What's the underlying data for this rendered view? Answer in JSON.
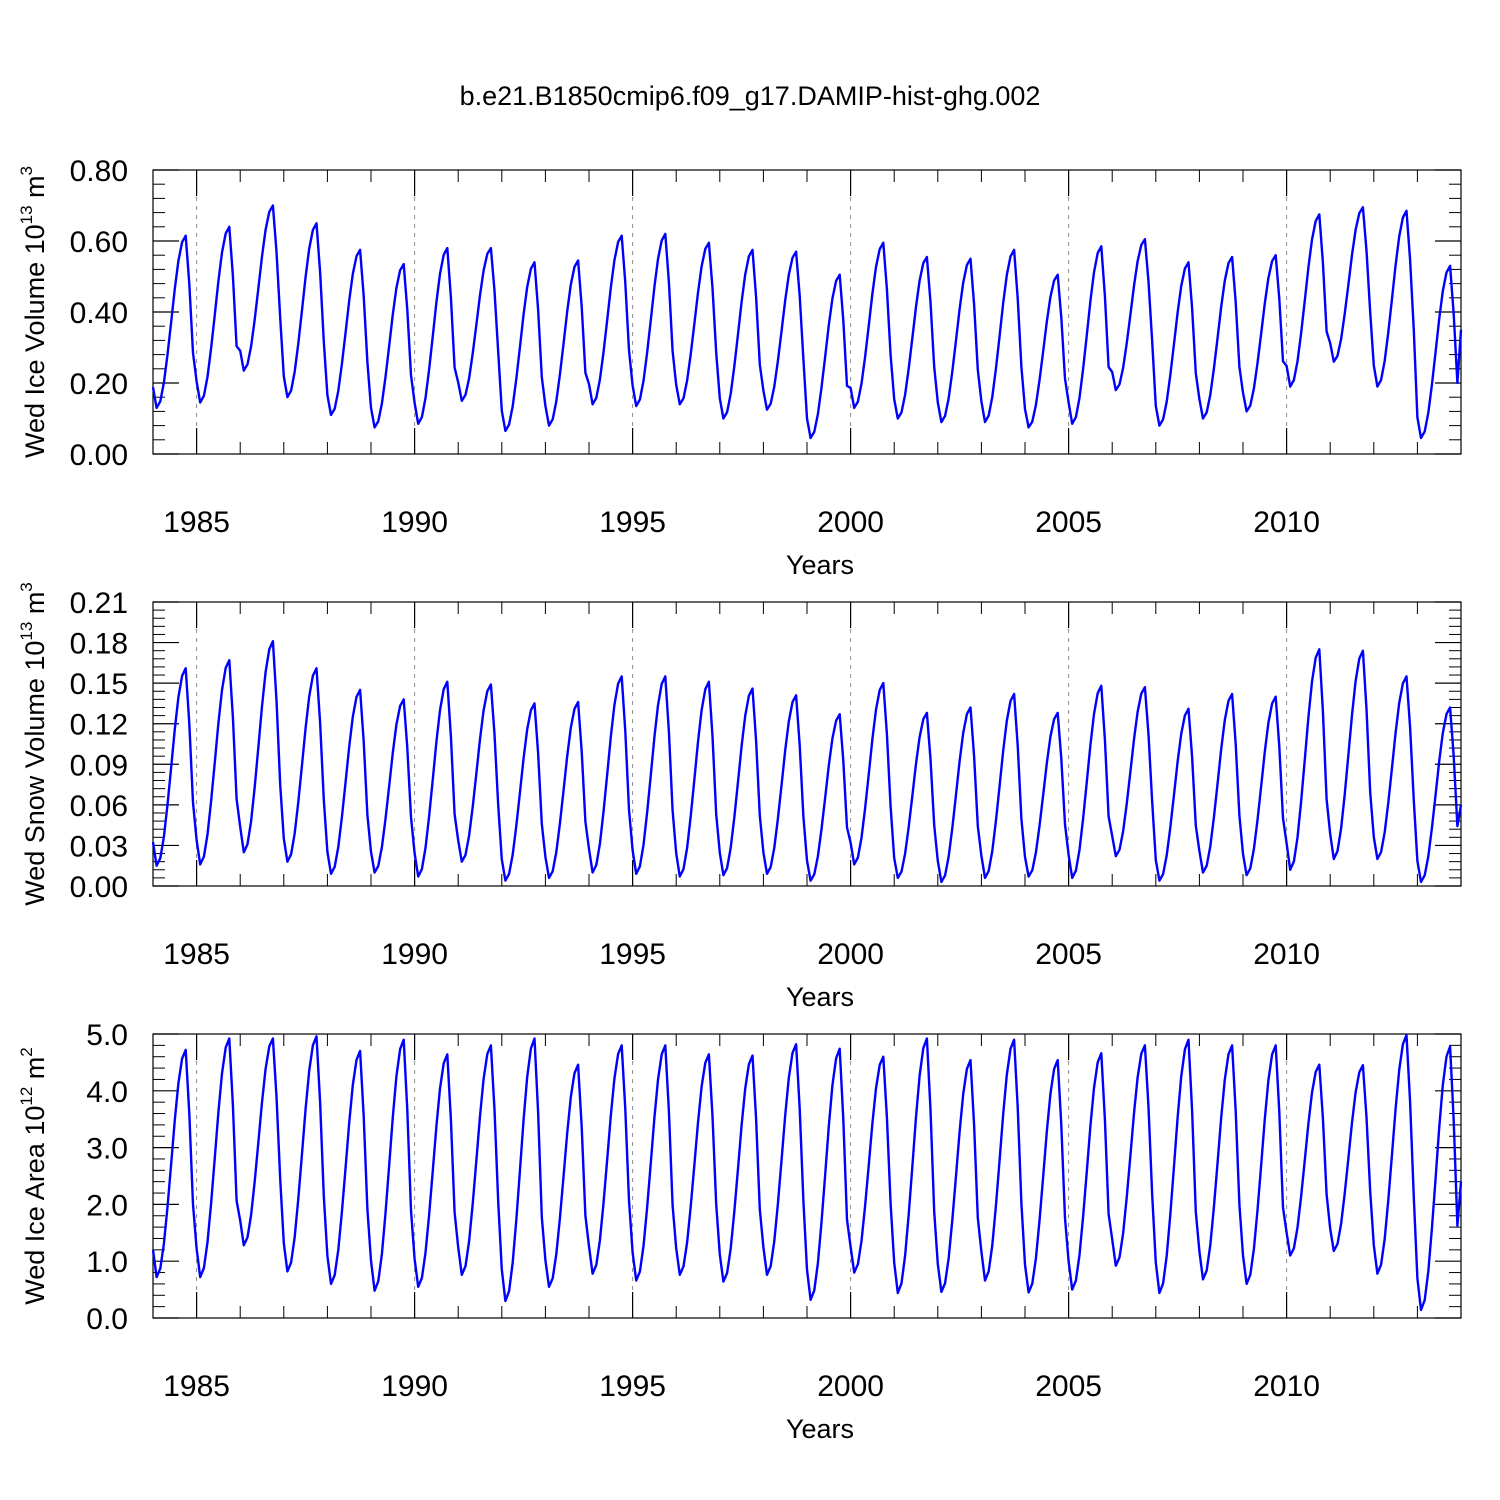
{
  "title": "b.e21.B1850cmip6.f09_g17.DAMIP-hist-ghg.002",
  "colors": {
    "line": "#0000ff",
    "axis": "#000000",
    "refline": "#8c8c8c"
  },
  "chart_data": [
    {
      "type": "line",
      "name": "ice-volume",
      "ylabel_main": "Wed Ice Volume 10",
      "ylabel_exp": "13",
      "ylabel_unit": " m",
      "ylabel_unit_exp": "3",
      "xlabel": "Years",
      "xlim": [
        1984.0,
        2014.0
      ],
      "ylim": [
        0.0,
        0.8
      ],
      "xticks": [
        "1985",
        "1990",
        "1995",
        "2000",
        "2005",
        "2010"
      ],
      "yticks": [
        "0.00",
        "0.20",
        "0.40",
        "0.60",
        "0.80"
      ],
      "ref_years": [
        1985,
        1990,
        1995,
        2000,
        2005,
        2010
      ],
      "series": [
        {
          "name": "Wed Ice Volume",
          "start_year": 1984.0,
          "step": 0.0833333,
          "annual_min": [
            0.13,
            0.145,
            0.235,
            0.16,
            0.11,
            0.075,
            0.085,
            0.15,
            0.065,
            0.08,
            0.14,
            0.135,
            0.14,
            0.1,
            0.125,
            0.045,
            0.13,
            0.1,
            0.09,
            0.09,
            0.075,
            0.085,
            0.18,
            0.08,
            0.1,
            0.12,
            0.19,
            0.26,
            0.19,
            0.045
          ],
          "annual_max": [
            0.615,
            0.64,
            0.7,
            0.65,
            0.575,
            0.535,
            0.58,
            0.58,
            0.54,
            0.545,
            0.615,
            0.62,
            0.595,
            0.575,
            0.57,
            0.505,
            0.595,
            0.555,
            0.55,
            0.575,
            0.505,
            0.585,
            0.605,
            0.54,
            0.555,
            0.56,
            0.675,
            0.695,
            0.685,
            0.53
          ],
          "end_value": 0.35
        }
      ]
    },
    {
      "type": "line",
      "name": "snow-volume",
      "ylabel_main": "Wed Snow Volume 10",
      "ylabel_exp": "13",
      "ylabel_unit": " m",
      "ylabel_unit_exp": "3",
      "xlabel": "Years",
      "xlim": [
        1984.0,
        2014.0
      ],
      "ylim": [
        0.0,
        0.21
      ],
      "xticks": [
        "1985",
        "1990",
        "1995",
        "2000",
        "2005",
        "2010"
      ],
      "yticks": [
        "0.00",
        "0.03",
        "0.06",
        "0.09",
        "0.12",
        "0.15",
        "0.18",
        "0.21"
      ],
      "ref_years": [
        1985,
        1990,
        1995,
        2000,
        2005,
        2010
      ],
      "series": [
        {
          "name": "Wed Snow Volume",
          "start_year": 1984.0,
          "step": 0.0833333,
          "annual_min": [
            0.015,
            0.016,
            0.025,
            0.018,
            0.009,
            0.01,
            0.007,
            0.018,
            0.004,
            0.006,
            0.01,
            0.009,
            0.007,
            0.008,
            0.009,
            0.004,
            0.016,
            0.006,
            0.003,
            0.006,
            0.007,
            0.006,
            0.022,
            0.004,
            0.01,
            0.008,
            0.012,
            0.02,
            0.02,
            0.003
          ],
          "annual_max": [
            0.161,
            0.167,
            0.181,
            0.161,
            0.145,
            0.138,
            0.151,
            0.149,
            0.135,
            0.136,
            0.155,
            0.155,
            0.151,
            0.146,
            0.141,
            0.127,
            0.15,
            0.128,
            0.132,
            0.142,
            0.128,
            0.148,
            0.147,
            0.131,
            0.142,
            0.14,
            0.175,
            0.174,
            0.155,
            0.132
          ],
          "end_value": 0.06
        }
      ]
    },
    {
      "type": "line",
      "name": "ice-area",
      "ylabel_main": "Wed Ice Area 10",
      "ylabel_exp": "12",
      "ylabel_unit": " m",
      "ylabel_unit_exp": "2",
      "xlabel": "Years",
      "xlim": [
        1984.0,
        2014.0
      ],
      "ylim": [
        0.0,
        5.0
      ],
      "xticks": [
        "1985",
        "1990",
        "1995",
        "2000",
        "2005",
        "2010"
      ],
      "yticks": [
        "0.0",
        "1.0",
        "2.0",
        "3.0",
        "4.0",
        "5.0"
      ],
      "ref_years": [
        1985,
        1990,
        1995,
        2000,
        2005,
        2010
      ],
      "series": [
        {
          "name": "Wed Ice Area",
          "start_year": 1984.0,
          "step": 0.0833333,
          "annual_min": [
            0.72,
            0.72,
            1.28,
            0.82,
            0.6,
            0.48,
            0.55,
            0.76,
            0.3,
            0.55,
            0.78,
            0.66,
            0.76,
            0.64,
            0.76,
            0.32,
            0.8,
            0.44,
            0.46,
            0.66,
            0.45,
            0.5,
            0.92,
            0.44,
            0.68,
            0.6,
            1.1,
            1.18,
            0.78,
            0.14
          ],
          "annual_max": [
            4.72,
            4.92,
            4.92,
            4.96,
            4.7,
            4.9,
            4.64,
            4.8,
            4.92,
            4.46,
            4.8,
            4.8,
            4.64,
            4.62,
            4.82,
            4.74,
            4.6,
            4.92,
            4.54,
            4.9,
            4.54,
            4.66,
            4.8,
            4.9,
            4.8,
            4.8,
            4.46,
            4.45,
            4.98,
            4.78
          ],
          "end_value": 2.4
        }
      ]
    }
  ]
}
